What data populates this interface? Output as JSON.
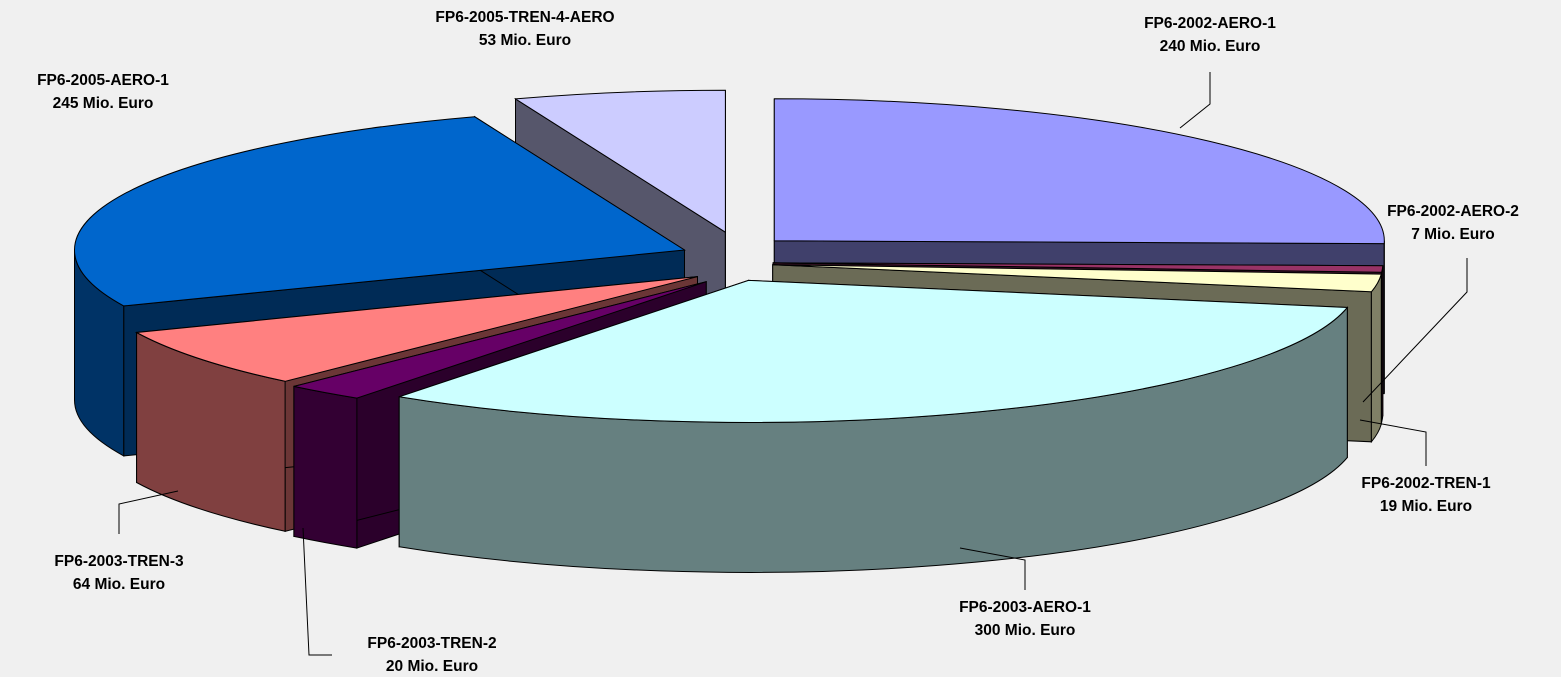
{
  "chart_data": {
    "type": "pie",
    "style": "3d-exploded",
    "unit": "Mio. Euro",
    "slices": [
      {
        "name": "FP6-2002-AERO-1",
        "value": 240,
        "value_label": "240 Mio. Euro",
        "color": "#9999ff"
      },
      {
        "name": "FP6-2002-AERO-2",
        "value": 7,
        "value_label": "7 Mio. Euro",
        "color": "#993366"
      },
      {
        "name": "FP6-2002-TREN-1",
        "value": 19,
        "value_label": "19 Mio. Euro",
        "color": "#ffffcc"
      },
      {
        "name": "FP6-2003-AERO-1",
        "value": 300,
        "value_label": "300 Mio. Euro",
        "color": "#ccffff"
      },
      {
        "name": "FP6-2003-TREN-2",
        "value": 20,
        "value_label": "20 Mio. Euro",
        "color": "#660066"
      },
      {
        "name": "FP6-2003-TREN-3",
        "value": 64,
        "value_label": "64 Mio. Euro",
        "color": "#ff8080"
      },
      {
        "name": "FP6-2005-AERO-1",
        "value": 245,
        "value_label": "245 Mio. Euro",
        "color": "#0066cc"
      },
      {
        "name": "FP6-2005-TREN-4-AERO",
        "value": 53,
        "value_label": "53 Mio. Euro",
        "color": "#ccccff"
      }
    ],
    "title": "",
    "legend": "none",
    "data_labels": "outside with leader lines"
  }
}
